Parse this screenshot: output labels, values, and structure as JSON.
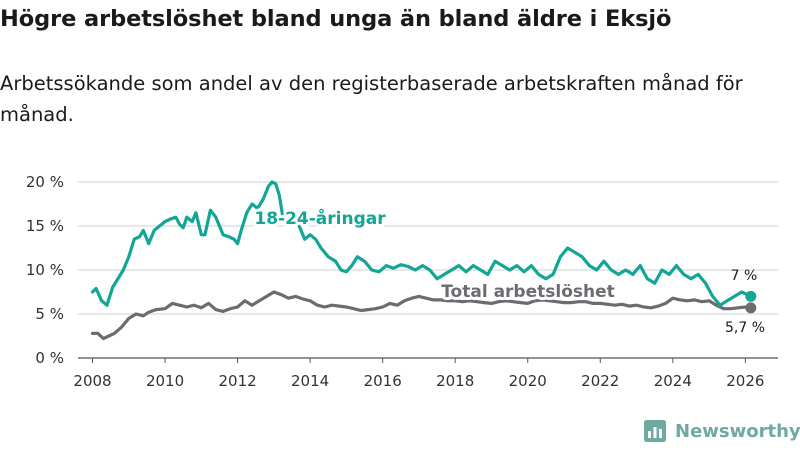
{
  "title": "Högre arbetslöshet bland unga än bland äldre i Eksjö",
  "subtitle": "Arbetssökande som andel av den registerbaserade arbetskraften månad för månad.",
  "brand": "Newsworthy",
  "colors": {
    "young": "#13a595",
    "total": "#6d6b70",
    "grid": "#d0d0d0",
    "text": "#1a1a1a",
    "brand": "#6fa9a1"
  },
  "chart_data": {
    "type": "line",
    "title": "Högre arbetslöshet bland unga än bland äldre i Eksjö",
    "xlabel": "",
    "ylabel": "",
    "xlim": [
      2007.6,
      2026.9
    ],
    "ylim": [
      0,
      20
    ],
    "x_ticks": [
      2008,
      2010,
      2012,
      2014,
      2016,
      2018,
      2020,
      2022,
      2024,
      2026
    ],
    "x_tick_labels": [
      "2008",
      "2010",
      "2012",
      "2014",
      "2016",
      "2018",
      "2020",
      "2022",
      "2024",
      "2026"
    ],
    "y_ticks": [
      0,
      5,
      10,
      15,
      20
    ],
    "y_tick_labels": [
      "0 %",
      "5 %",
      "10 %",
      "15 %",
      "20 %"
    ],
    "grid": true,
    "series": [
      {
        "name": "18-24-åringar",
        "label": "18-24-åringar",
        "color": "#13a595",
        "end_label": "7 %",
        "x": [
          2008.0,
          2008.1,
          2008.25,
          2008.4,
          2008.55,
          2008.7,
          2008.85,
          2009.0,
          2009.15,
          2009.3,
          2009.4,
          2009.55,
          2009.7,
          2009.85,
          2010.0,
          2010.15,
          2010.3,
          2010.4,
          2010.5,
          2010.6,
          2010.75,
          2010.85,
          2011.0,
          2011.1,
          2011.25,
          2011.4,
          2011.6,
          2011.75,
          2011.9,
          2012.0,
          2012.1,
          2012.25,
          2012.4,
          2012.55,
          2012.7,
          2012.85,
          2012.95,
          2013.05,
          2013.15,
          2013.25,
          2013.4,
          2013.55,
          2013.7,
          2013.85,
          2014.0,
          2014.15,
          2014.3,
          2014.5,
          2014.7,
          2014.85,
          2015.0,
          2015.15,
          2015.3,
          2015.5,
          2015.7,
          2015.9,
          2016.1,
          2016.3,
          2016.5,
          2016.7,
          2016.9,
          2017.1,
          2017.3,
          2017.5,
          2017.7,
          2017.9,
          2018.1,
          2018.3,
          2018.5,
          2018.7,
          2018.9,
          2019.1,
          2019.3,
          2019.5,
          2019.7,
          2019.9,
          2020.1,
          2020.3,
          2020.5,
          2020.7,
          2020.9,
          2021.1,
          2021.3,
          2021.5,
          2021.7,
          2021.9,
          2022.1,
          2022.3,
          2022.5,
          2022.7,
          2022.9,
          2023.1,
          2023.3,
          2023.5,
          2023.7,
          2023.9,
          2024.1,
          2024.3,
          2024.5,
          2024.7,
          2024.9,
          2025.1,
          2025.3,
          2025.5,
          2025.7,
          2025.9,
          2026.05,
          2026.15
        ],
        "values": [
          7.5,
          7.9,
          6.5,
          6.0,
          8.0,
          9.0,
          10.0,
          11.5,
          13.5,
          13.8,
          14.5,
          13.0,
          14.5,
          15.0,
          15.5,
          15.8,
          16.0,
          15.2,
          14.8,
          16.0,
          15.5,
          16.5,
          14.0,
          14.0,
          16.8,
          16.0,
          14.0,
          13.8,
          13.5,
          13.0,
          14.5,
          16.5,
          17.5,
          17.0,
          18.0,
          19.5,
          20.0,
          19.8,
          18.5,
          16.0,
          16.5,
          15.5,
          15.0,
          13.5,
          14.0,
          13.5,
          12.5,
          11.5,
          11.0,
          10.0,
          9.8,
          10.5,
          11.5,
          11.0,
          10.0,
          9.8,
          10.5,
          10.2,
          10.6,
          10.4,
          10.0,
          10.5,
          10.0,
          9.0,
          9.5,
          10.0,
          10.5,
          9.8,
          10.5,
          10.0,
          9.5,
          11.0,
          10.5,
          10.0,
          10.5,
          9.8,
          10.5,
          9.5,
          9.0,
          9.5,
          11.5,
          12.5,
          12.0,
          11.5,
          10.5,
          10.0,
          11.0,
          10.0,
          9.5,
          10.0,
          9.5,
          10.5,
          9.0,
          8.5,
          10.0,
          9.5,
          10.5,
          9.5,
          9.0,
          9.5,
          8.5,
          7.0,
          6.0,
          6.5,
          7.0,
          7.5,
          7.2,
          7.0
        ]
      },
      {
        "name": "Total arbetslöshet",
        "label": "Total arbetslöshet",
        "color": "#6d6b70",
        "end_label": "5,7 %",
        "x": [
          2008.0,
          2008.15,
          2008.3,
          2008.45,
          2008.6,
          2008.8,
          2009.0,
          2009.2,
          2009.4,
          2009.55,
          2009.75,
          2010.0,
          2010.2,
          2010.4,
          2010.6,
          2010.8,
          2011.0,
          2011.2,
          2011.4,
          2011.6,
          2011.8,
          2012.0,
          2012.2,
          2012.4,
          2012.6,
          2012.8,
          2013.0,
          2013.2,
          2013.4,
          2013.6,
          2013.8,
          2014.0,
          2014.2,
          2014.4,
          2014.6,
          2014.8,
          2015.0,
          2015.2,
          2015.4,
          2015.6,
          2015.8,
          2016.0,
          2016.2,
          2016.4,
          2016.6,
          2016.8,
          2017.0,
          2017.2,
          2017.4,
          2017.6,
          2017.8,
          2018.0,
          2018.2,
          2018.4,
          2018.6,
          2018.8,
          2019.0,
          2019.2,
          2019.4,
          2019.6,
          2019.8,
          2020.0,
          2020.2,
          2020.4,
          2020.6,
          2020.8,
          2021.0,
          2021.2,
          2021.4,
          2021.6,
          2021.8,
          2022.0,
          2022.2,
          2022.4,
          2022.6,
          2022.8,
          2023.0,
          2023.2,
          2023.4,
          2023.6,
          2023.8,
          2024.0,
          2024.2,
          2024.4,
          2024.6,
          2024.8,
          2025.0,
          2025.2,
          2025.4,
          2025.6,
          2025.8,
          2026.0,
          2026.15
        ],
        "values": [
          2.8,
          2.8,
          2.2,
          2.5,
          2.8,
          3.5,
          4.5,
          5.0,
          4.8,
          5.2,
          5.5,
          5.6,
          6.2,
          6.0,
          5.8,
          6.0,
          5.7,
          6.2,
          5.5,
          5.3,
          5.6,
          5.8,
          6.5,
          6.0,
          6.5,
          7.0,
          7.5,
          7.2,
          6.8,
          7.0,
          6.7,
          6.5,
          6.0,
          5.8,
          6.0,
          5.9,
          5.8,
          5.6,
          5.4,
          5.5,
          5.6,
          5.8,
          6.2,
          6.0,
          6.5,
          6.8,
          7.0,
          6.8,
          6.6,
          6.6,
          6.5,
          6.5,
          6.4,
          6.5,
          6.4,
          6.3,
          6.2,
          6.4,
          6.5,
          6.4,
          6.3,
          6.2,
          6.5,
          6.6,
          6.5,
          6.4,
          6.3,
          6.3,
          6.4,
          6.4,
          6.2,
          6.2,
          6.1,
          6.0,
          6.1,
          5.9,
          6.0,
          5.8,
          5.7,
          5.9,
          6.2,
          6.8,
          6.6,
          6.5,
          6.6,
          6.4,
          6.5,
          6.0,
          5.6,
          5.6,
          5.7,
          5.8,
          5.7
        ]
      }
    ]
  }
}
